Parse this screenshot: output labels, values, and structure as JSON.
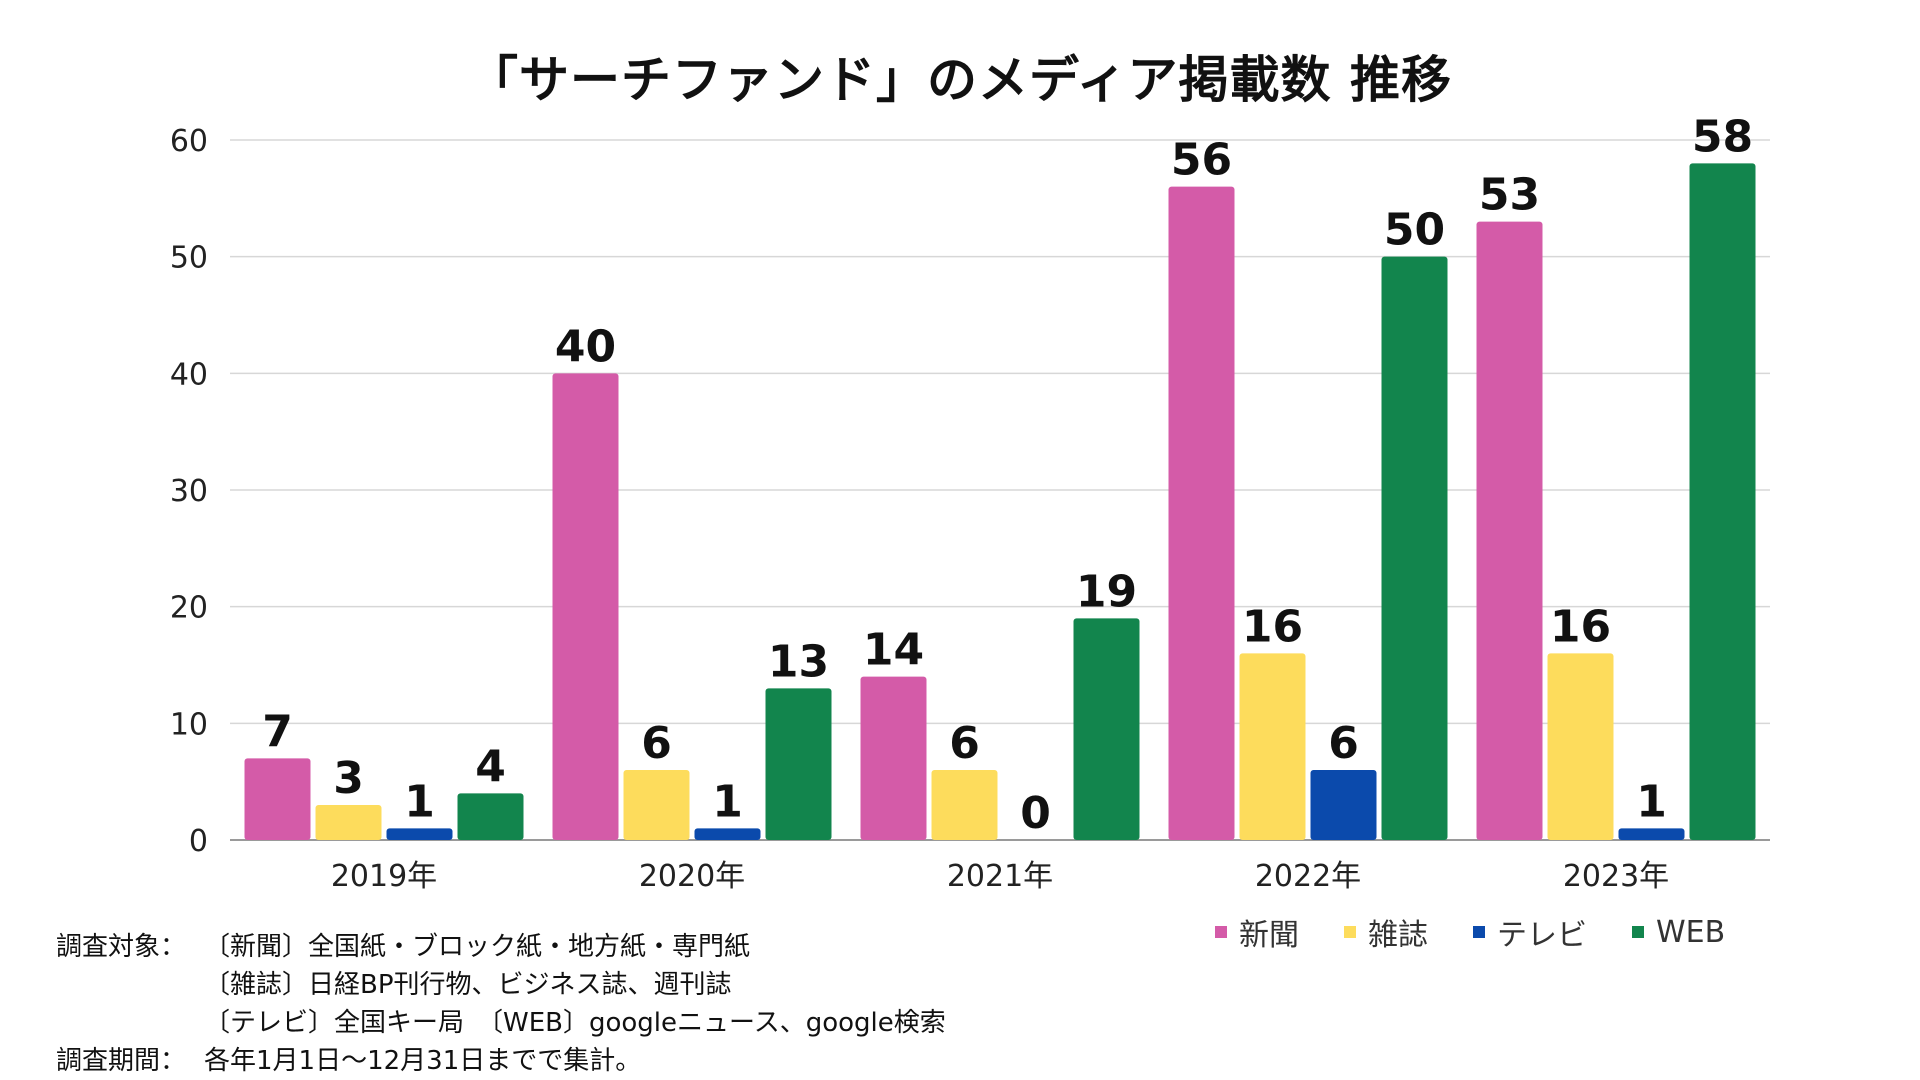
{
  "chart_data": {
    "type": "bar",
    "title": "「サーチファンド」のメディア掲載数 推移",
    "categories": [
      "2019年",
      "2020年",
      "2021年",
      "2022年",
      "2023年"
    ],
    "series": [
      {
        "name": "新聞",
        "color": "#d45ba8",
        "values": [
          7,
          40,
          14,
          56,
          53
        ]
      },
      {
        "name": "雑誌",
        "color": "#fddc5c",
        "values": [
          3,
          6,
          6,
          16,
          16
        ]
      },
      {
        "name": "テレビ",
        "color": "#0b4aac",
        "values": [
          1,
          1,
          0,
          6,
          1
        ]
      },
      {
        "name": "WEB",
        "color": "#12854d",
        "values": [
          4,
          13,
          19,
          50,
          58
        ]
      }
    ],
    "ylim": [
      0,
      60
    ],
    "yticks": [
      0,
      10,
      20,
      30,
      40,
      50,
      60
    ],
    "xlabel": "",
    "ylabel": "",
    "grid": true,
    "legend_position": "bottom-right"
  },
  "notes": [
    {
      "key": "調査対象：",
      "text": "〔新聞〕全国紙・ブロック紙・地方紙・専門紙"
    },
    {
      "key": "",
      "text": "〔雑誌〕日経BP刊行物、ビジネス誌、週刊誌"
    },
    {
      "key": "",
      "text": "〔テレビ〕全国キー局　〔WEB〕googleニュース、google検索"
    },
    {
      "key": "調査期間：",
      "text": "各年1月1日〜12月31日までで集計。"
    }
  ]
}
